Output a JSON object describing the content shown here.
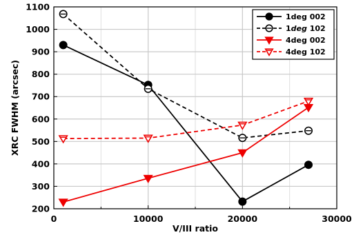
{
  "chart_data": {
    "type": "line",
    "title": "",
    "xlabel": "V/III ratio",
    "ylabel": "XRC FWHM (arcsec)",
    "xlim": [
      0,
      30000
    ],
    "ylim": [
      200,
      1100
    ],
    "x_ticks": [
      0,
      10000,
      20000,
      30000
    ],
    "x_tick_labels": [
      "0",
      "10000",
      "20000",
      "30000"
    ],
    "y_ticks": [
      200,
      300,
      400,
      500,
      600,
      700,
      800,
      900,
      1000,
      1100
    ],
    "y_tick_labels": [
      "200",
      "300",
      "400",
      "500",
      "600",
      "700",
      "800",
      "900",
      "1000",
      "1100"
    ],
    "grid": true,
    "legend_position": "top-right",
    "series": [
      {
        "name": "1deg 002",
        "legend_prefix": "1",
        "legend_italic": "",
        "legend_suffix": "deg 002",
        "color": "#000000",
        "line": "solid",
        "marker": "filled-circle",
        "x": [
          1000,
          10000,
          20000,
          27000
        ],
        "y": [
          930,
          752,
          232,
          396
        ]
      },
      {
        "name": "1deg 102",
        "legend_prefix": "1",
        "legend_italic": "deg",
        "legend_suffix": " 102",
        "color": "#000000",
        "line": "dashed",
        "marker": "open-circle-bar",
        "x": [
          1000,
          10000,
          20000,
          27000
        ],
        "y": [
          1068,
          735,
          516,
          548
        ]
      },
      {
        "name": "4deg 002",
        "legend_prefix": "4",
        "legend_italic": "",
        "legend_suffix": "deg 002",
        "color": "#ee0000",
        "line": "solid",
        "marker": "filled-triangle-down",
        "x": [
          1000,
          10000,
          20000,
          27000
        ],
        "y": [
          230,
          336,
          450,
          652
        ]
      },
      {
        "name": "4deg 102",
        "legend_prefix": "4",
        "legend_italic": "",
        "legend_suffix": "deg 102",
        "color": "#ee0000",
        "line": "dashed",
        "marker": "open-triangle-down-bar",
        "x": [
          1000,
          10000,
          20000,
          27000
        ],
        "y": [
          513,
          515,
          573,
          680
        ]
      }
    ]
  }
}
